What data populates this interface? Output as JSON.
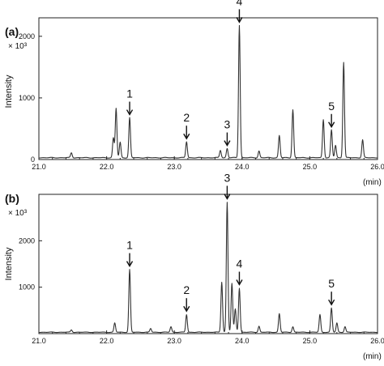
{
  "chart_data": [
    {
      "type": "line",
      "panel_label": "(a)",
      "ylabel": "Intensity",
      "y_multiplier": "× 10³",
      "xunit": "(min)",
      "xlim": [
        21.0,
        26.0
      ],
      "ylim": [
        0,
        2300
      ],
      "xticks": [
        "21.0",
        "22.0",
        "23.0",
        "24.0",
        "25.0",
        "26.0"
      ],
      "yticks": [
        {
          "value": 0,
          "label": "0"
        },
        {
          "value": 1000,
          "label": "1000"
        },
        {
          "value": 2000,
          "label": "2000"
        }
      ],
      "baseline": 30,
      "peaks": [
        {
          "t": 21.48,
          "h": 80
        },
        {
          "t": 22.1,
          "h": 320
        },
        {
          "t": 22.14,
          "h": 800
        },
        {
          "t": 22.2,
          "h": 250
        },
        {
          "t": 22.34,
          "h": 650
        },
        {
          "t": 23.18,
          "h": 260
        },
        {
          "t": 23.68,
          "h": 120
        },
        {
          "t": 23.78,
          "h": 150
        },
        {
          "t": 23.96,
          "h": 2150
        },
        {
          "t": 24.25,
          "h": 110
        },
        {
          "t": 24.55,
          "h": 360
        },
        {
          "t": 24.75,
          "h": 780
        },
        {
          "t": 25.2,
          "h": 620
        },
        {
          "t": 25.32,
          "h": 450
        },
        {
          "t": 25.38,
          "h": 200
        },
        {
          "t": 25.5,
          "h": 1550
        },
        {
          "t": 25.78,
          "h": 290
        }
      ],
      "markers": [
        {
          "label": "1",
          "t": 22.34,
          "y": 650
        },
        {
          "label": "2",
          "t": 23.18,
          "y": 260
        },
        {
          "label": "3",
          "t": 23.78,
          "y": 150
        },
        {
          "label": "4",
          "t": 23.96,
          "y": 2150
        },
        {
          "label": "5",
          "t": 25.32,
          "y": 450
        }
      ]
    },
    {
      "type": "line",
      "panel_label": "(b)",
      "ylabel": "Intensity",
      "y_multiplier": "× 10³",
      "xunit": "(min)",
      "xlim": [
        21.0,
        26.0
      ],
      "ylim": [
        0,
        3000
      ],
      "xticks": [
        "21.0",
        "22.0",
        "23.0",
        "24.0",
        "25.0",
        "26.0"
      ],
      "yticks": [
        {
          "value": 1000,
          "label": "1000"
        },
        {
          "value": 2000,
          "label": "2000"
        }
      ],
      "baseline": 30,
      "peaks": [
        {
          "t": 21.48,
          "h": 50
        },
        {
          "t": 22.12,
          "h": 200
        },
        {
          "t": 22.34,
          "h": 1350
        },
        {
          "t": 22.65,
          "h": 80
        },
        {
          "t": 22.95,
          "h": 120
        },
        {
          "t": 23.18,
          "h": 380
        },
        {
          "t": 23.7,
          "h": 1080
        },
        {
          "t": 23.78,
          "h": 2800
        },
        {
          "t": 23.85,
          "h": 1050
        },
        {
          "t": 23.9,
          "h": 500
        },
        {
          "t": 23.96,
          "h": 950
        },
        {
          "t": 24.25,
          "h": 130
        },
        {
          "t": 24.55,
          "h": 400
        },
        {
          "t": 24.75,
          "h": 120
        },
        {
          "t": 25.15,
          "h": 380
        },
        {
          "t": 25.32,
          "h": 520
        },
        {
          "t": 25.4,
          "h": 200
        },
        {
          "t": 25.52,
          "h": 120
        }
      ],
      "markers": [
        {
          "label": "1",
          "t": 22.34,
          "y": 1350
        },
        {
          "label": "2",
          "t": 23.18,
          "y": 380
        },
        {
          "label": "3",
          "t": 23.78,
          "y": 2800
        },
        {
          "label": "4",
          "t": 23.96,
          "y": 950
        },
        {
          "label": "5",
          "t": 25.32,
          "y": 520
        }
      ]
    }
  ]
}
